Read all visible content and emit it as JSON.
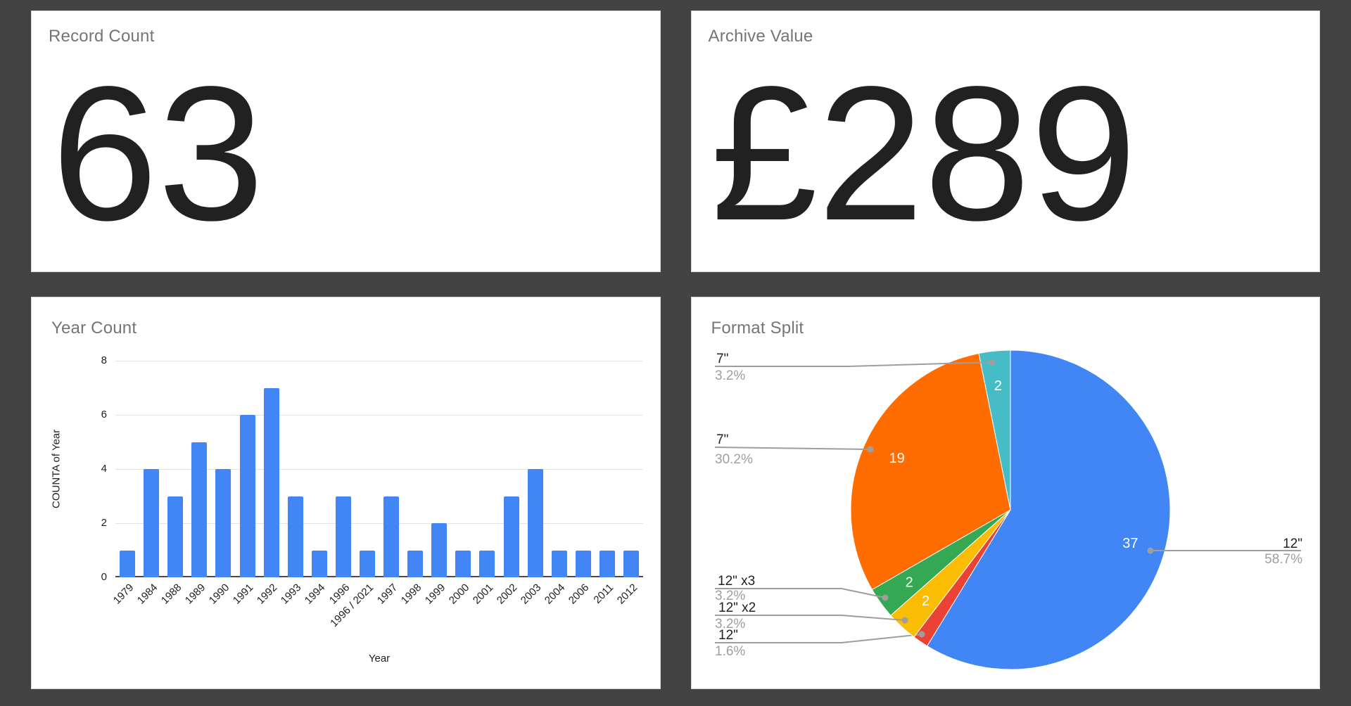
{
  "page": {
    "background_color": "#434343",
    "card_color": "#ffffff"
  },
  "cards": {
    "record_count": {
      "title": "Record Count",
      "value": "63"
    },
    "archive_value": {
      "title": "Archive Value",
      "value": "£289"
    },
    "year_count": {
      "title": "Year Count"
    },
    "format_split": {
      "title": "Format Split"
    }
  },
  "chart_data": [
    {
      "type": "bar",
      "title": "Year Count",
      "xlabel": "Year",
      "ylabel": "COUNTA of Year",
      "ylim": [
        0,
        8
      ],
      "yticks": [
        0,
        2,
        4,
        6,
        8
      ],
      "grid": true,
      "bar_color": "#4285f4",
      "categories": [
        "1979",
        "1984",
        "1988",
        "1989",
        "1990",
        "1991",
        "1992",
        "1993",
        "1994",
        "1996",
        "1996 / 2021",
        "1997",
        "1998",
        "1999",
        "2000",
        "2001",
        "2002",
        "2003",
        "2004",
        "2006",
        "2011",
        "2012"
      ],
      "values": [
        1,
        4,
        3,
        5,
        4,
        6,
        7,
        3,
        1,
        3,
        1,
        3,
        1,
        2,
        1,
        1,
        3,
        4,
        1,
        1,
        1,
        1
      ]
    },
    {
      "type": "pie",
      "title": "Format Split",
      "direction": "clockwise",
      "start_angle_deg": 0,
      "total": 63,
      "slices": [
        {
          "label": "12\"",
          "value": 37,
          "percent": "58.7%",
          "color": "#4285f4"
        },
        {
          "label": "12\"",
          "value": 1,
          "percent": "1.6%",
          "color": "#ea4335"
        },
        {
          "label": "12\" x2",
          "value": 2,
          "percent": "3.2%",
          "color": "#fbbc04"
        },
        {
          "label": "12\" x3",
          "value": 2,
          "percent": "3.2%",
          "color": "#34a853"
        },
        {
          "label": "7\"",
          "value": 19,
          "percent": "30.2%",
          "color": "#ff6d01"
        },
        {
          "label": "7\"",
          "value": 2,
          "percent": "3.2%",
          "color": "#46bdc6"
        }
      ],
      "legend_position": "none",
      "leader_line_color": "#9e9e9e"
    }
  ]
}
